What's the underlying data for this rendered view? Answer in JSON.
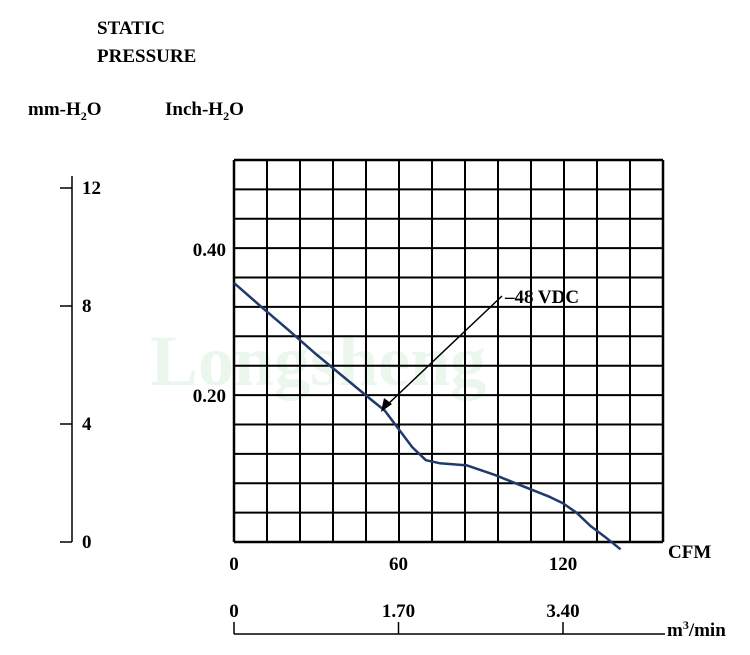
{
  "chart_data": {
    "type": "line",
    "title_line1": "STATIC",
    "title_line2": "PRESSURE",
    "ylabel_mm": "mm-H2O",
    "ylabel_inch": "Inch-H2O",
    "xlabel_cfm": "CFM",
    "xlabel_m3": "m3/min",
    "mm_ticks": [
      "12",
      "8",
      "4",
      "0"
    ],
    "inch_ticks": [
      "0.40",
      "0.20"
    ],
    "cfm_ticks": [
      "0",
      "60",
      "120"
    ],
    "m3_ticks": [
      "0",
      "1.70",
      "3.40"
    ],
    "xlim_cfm": [
      0,
      158
    ],
    "ylim_inch": [
      0,
      0.52
    ],
    "grid": true,
    "series": [
      {
        "name": "48 VDC",
        "color": "#1f3a6b",
        "x": [
          0,
          10,
          20,
          30,
          40,
          50,
          55,
          60,
          65,
          70,
          75,
          85,
          95,
          105,
          115,
          120,
          125,
          130,
          135,
          141
        ],
        "y": [
          0.355,
          0.322,
          0.29,
          0.257,
          0.226,
          0.195,
          0.18,
          0.155,
          0.13,
          0.112,
          0.108,
          0.105,
          0.092,
          0.077,
          0.062,
          0.053,
          0.04,
          0.022,
          0.008,
          -0.01
        ]
      }
    ],
    "watermark": "Longsheng"
  }
}
